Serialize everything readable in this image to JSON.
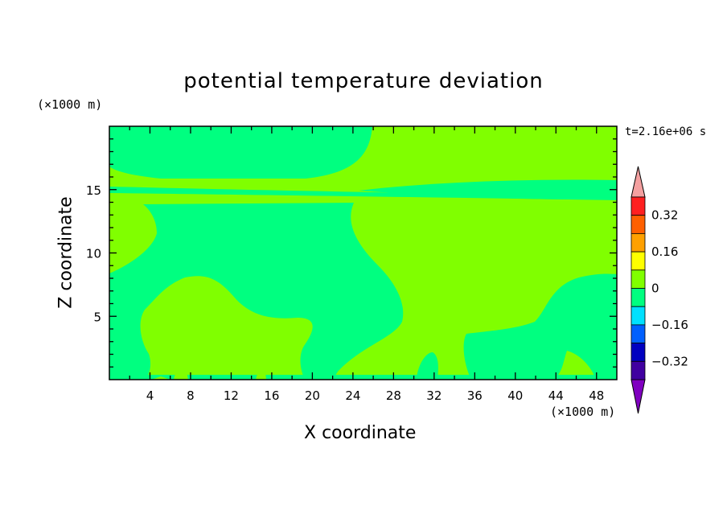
{
  "chart_data": {
    "type": "heatmap",
    "title": "potential temperature deviation",
    "xlabel": "X coordinate",
    "ylabel": "Z coordinate",
    "x_unit": "(×1000 m)",
    "y_unit": "(×1000 m)",
    "time_label": "t=2.16e+06 s",
    "xlim": [
      0,
      50
    ],
    "ylim": [
      0,
      20
    ],
    "x_ticks": [
      4,
      8,
      12,
      16,
      20,
      24,
      28,
      32,
      36,
      40,
      44,
      48
    ],
    "y_ticks": [
      5,
      10,
      15
    ],
    "colorbar": {
      "levels": [
        -0.4,
        -0.32,
        -0.24,
        -0.16,
        -0.08,
        0,
        0.08,
        0.16,
        0.24,
        0.32,
        0.4
      ],
      "tick_labels": [
        "0.32",
        "0.16",
        "0",
        "−0.16",
        "−0.32"
      ],
      "tick_values": [
        0.32,
        0.16,
        0,
        -0.16,
        -0.32
      ],
      "colors": [
        "#8000c0",
        "#4000a0",
        "#0000c0",
        "#0060ff",
        "#00e0ff",
        "#00ff80",
        "#80ff00",
        "#ffff00",
        "#ffa000",
        "#ff6000",
        "#ff2020",
        "#f4a0a0"
      ]
    },
    "field_classes": {
      "band_0_to_0.08": "#80ff00",
      "band_-0.08_to_0": "#00ff80"
    }
  }
}
